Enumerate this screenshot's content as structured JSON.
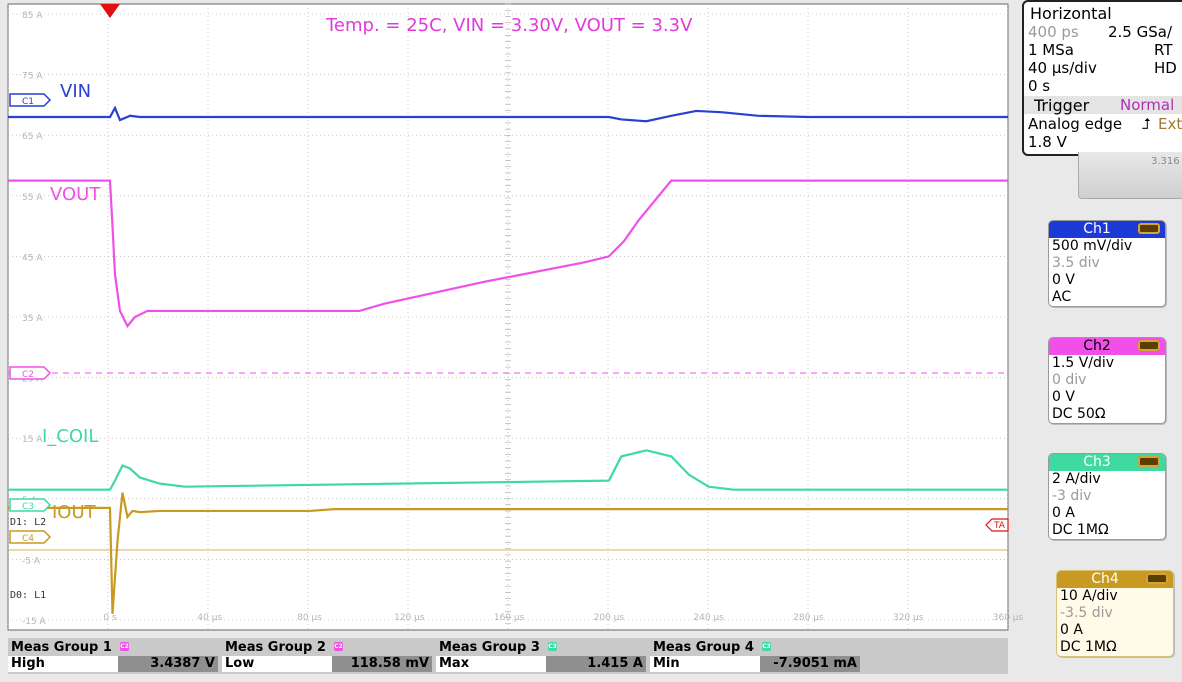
{
  "annotation": "Temp. = 25C, VIN = 3.30V, VOUT = 3.3V",
  "trace_labels": {
    "vin": "VIN",
    "vout": "VOUT",
    "icoil": "I_COIL",
    "iout": "IOUT"
  },
  "y_ticks": [
    "85 A",
    "75 A",
    "65 A",
    "55 A",
    "45 A",
    "35 A",
    "25 A",
    "15 A",
    "5 A",
    "-5 A",
    "-15 A"
  ],
  "x_ticks": [
    "0 s",
    "40 µs",
    "80 µs",
    "120 µs",
    "160 µs",
    "200 µs",
    "240 µs",
    "280 µs",
    "320 µs",
    "360 µs"
  ],
  "markers": {
    "c1": "C1",
    "c2": "C2",
    "c3": "C3",
    "c4": "C4",
    "d1": "D1: L2",
    "d0": "D0: L1",
    "trigger": "TA"
  },
  "colors": {
    "ch1": "#2a3fd4",
    "ch2": "#f050e8",
    "ch3": "#3fd9a2",
    "ch4": "#c89a22",
    "grid": "#a8a8a8"
  },
  "horizontal": {
    "title": "Horizontal",
    "resolution": "400 ps",
    "sample_rate": "2.5 GSa/",
    "memory": "1 MSa",
    "mode": "RT",
    "timebase": "40 µs/div",
    "hd": "HD",
    "delay": "0 s"
  },
  "trigger": {
    "title": "Trigger",
    "mode": "Normal",
    "type": "Analog edge",
    "source": "Ext",
    "level": "1.8 V",
    "readout": "3.316"
  },
  "channels": [
    {
      "name": "Ch1",
      "scale": "500 mV/div",
      "offset_div": "3.5 div",
      "offset": "0 V",
      "coupling": "AC",
      "color": "#1e3ad6"
    },
    {
      "name": "Ch2",
      "scale": "1.5 V/div",
      "offset_div": "0 div",
      "offset": "0 V",
      "coupling": "DC 50Ω",
      "color": "#f050e8"
    },
    {
      "name": "Ch3",
      "scale": "2 A/div",
      "offset_div": "-3 div",
      "offset": "0 A",
      "coupling": "DC 1MΩ",
      "color": "#3fd9a2"
    },
    {
      "name": "Ch4",
      "scale": "10 A/div",
      "offset_div": "-3.5 div",
      "offset": "0 A",
      "coupling": "DC 1MΩ",
      "color": "#c89a22"
    }
  ],
  "measurements": [
    {
      "group": "Meas Group 1",
      "channel": "C2",
      "label": "High",
      "value": "3.4387 V",
      "color": "#f050e8"
    },
    {
      "group": "Meas Group 2",
      "channel": "C2",
      "label": "Low",
      "value": "118.58 mV",
      "color": "#f050e8"
    },
    {
      "group": "Meas Group 3",
      "channel": "C3",
      "label": "Max",
      "value": "1.415 A",
      "color": "#3fd9a2"
    },
    {
      "group": "Meas Group 4",
      "channel": "C3",
      "label": "Min",
      "value": "-7.9051 mA",
      "color": "#3fd9a2"
    }
  ],
  "chart_data": {
    "type": "line",
    "title": "Temp. = 25C, VIN = 3.30V, VOUT = 3.3V",
    "xlabel": "",
    "ylabel": "",
    "x_unit": "µs",
    "xlim": [
      0,
      360
    ],
    "ylim": [
      -15,
      85
    ],
    "grid": true,
    "series": [
      {
        "name": "VIN",
        "color": "#2a3fd4",
        "x": [
          0,
          2,
          4,
          8,
          12,
          200,
          205,
          215,
          225,
          235,
          245,
          260,
          280,
          360
        ],
        "values": [
          68,
          69.5,
          67.5,
          68.2,
          68,
          68,
          67.6,
          67.3,
          68.2,
          69,
          68.8,
          68.2,
          68,
          68
        ]
      },
      {
        "name": "VOUT",
        "color": "#f050e8",
        "x": [
          0,
          1,
          2,
          4,
          7,
          10,
          15,
          25,
          95,
          100,
          110,
          150,
          190,
          200,
          206,
          212,
          220,
          225,
          240,
          360
        ],
        "values": [
          57.5,
          50,
          42,
          36,
          33.5,
          35,
          36,
          36,
          36,
          36,
          37.2,
          40.8,
          44,
          45,
          47.5,
          51,
          55,
          57.5,
          57.5,
          57.5
        ]
      },
      {
        "name": "I_COIL",
        "color": "#3fd9a2",
        "x": [
          0,
          2,
          5,
          8,
          12,
          20,
          30,
          200,
          205,
          215,
          225,
          232,
          240,
          250,
          360
        ],
        "values": [
          6.5,
          8,
          10.5,
          10,
          8.5,
          7.5,
          7,
          8,
          12,
          13,
          12,
          9,
          7,
          6.5,
          6.5
        ]
      },
      {
        "name": "IOUT",
        "color": "#c89a22",
        "x": [
          0,
          1,
          3,
          5,
          7,
          9,
          12,
          20,
          80,
          90,
          360
        ],
        "values": [
          3.5,
          -14,
          -2,
          6,
          2,
          3,
          2.8,
          3,
          3,
          3.3,
          3.3
        ]
      }
    ]
  }
}
